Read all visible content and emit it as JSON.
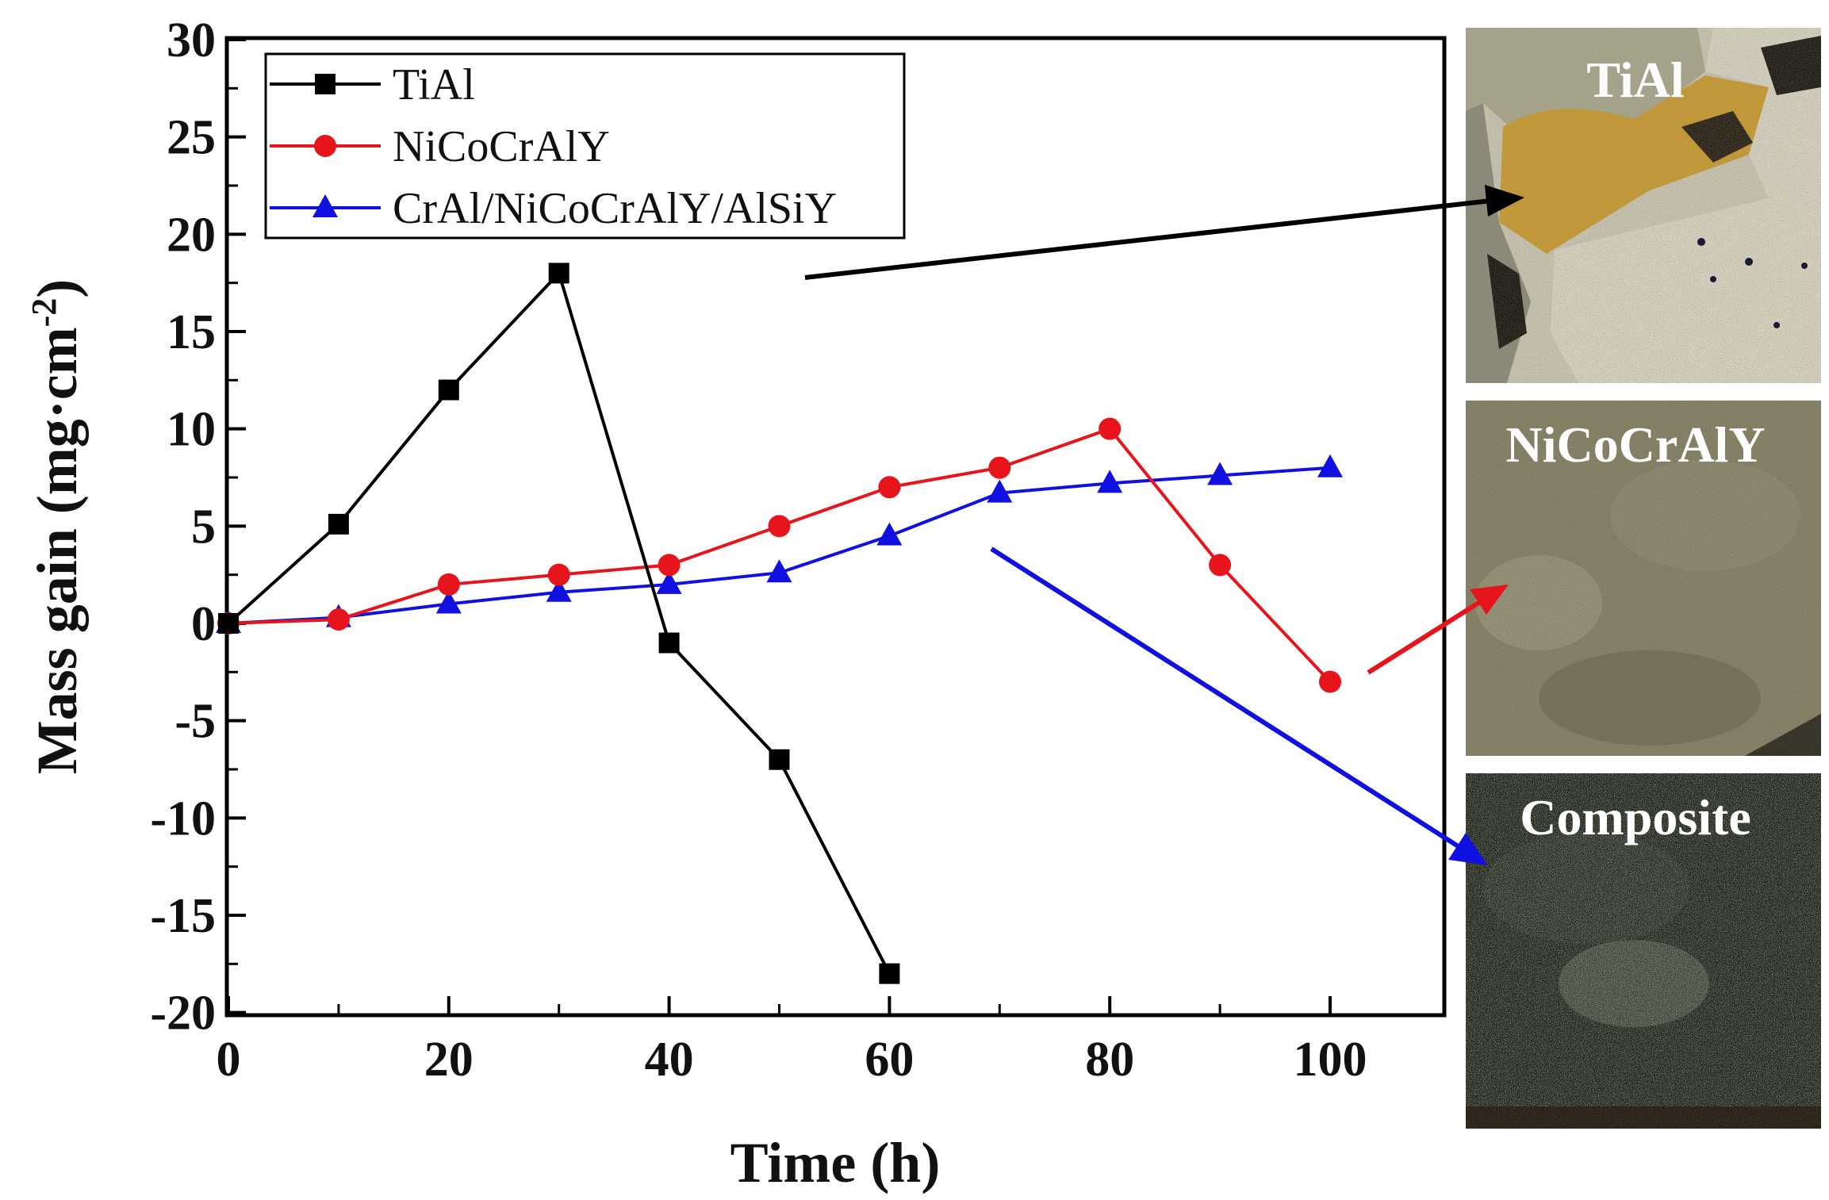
{
  "chart_data": {
    "type": "line",
    "title": "",
    "xlabel": "Time (h)",
    "ylabel": "Mass gain (mg·cm",
    "ylabel_superscript": "-2",
    "ylabel_close": ")",
    "xlim": [
      0,
      110
    ],
    "ylim": [
      -20,
      30
    ],
    "xticks": [
      0,
      20,
      40,
      60,
      80,
      100
    ],
    "xtick_labels": [
      "0",
      "20",
      "40",
      "60",
      "80",
      "100"
    ],
    "yticks": [
      30,
      25,
      20,
      15,
      10,
      5,
      0,
      -5,
      -10,
      -15,
      -20
    ],
    "ytick_labels": [
      "30",
      "25",
      "20",
      "15",
      "10",
      "5",
      "0",
      "-5",
      "-10",
      "-15",
      "-20"
    ],
    "grid": false,
    "legend_position": "top-left",
    "series": [
      {
        "name": "TiAl",
        "color": "#000000",
        "marker": "square",
        "x": [
          0,
          10,
          20,
          30,
          40,
          50,
          60
        ],
        "values": [
          0,
          5.1,
          12,
          18,
          -1,
          -7,
          -18
        ]
      },
      {
        "name": "NiCoCrAlY",
        "color": "#e8141c",
        "marker": "circle",
        "x": [
          0,
          10,
          20,
          30,
          40,
          50,
          60,
          70,
          80,
          90,
          100
        ],
        "values": [
          0,
          0.2,
          2,
          2.5,
          3,
          5,
          7,
          8,
          10,
          3,
          -3
        ]
      },
      {
        "name": "CrAl/NiCoCrAlY/AlSiY",
        "color": "#1010e0",
        "marker": "triangle",
        "x": [
          0,
          10,
          20,
          30,
          40,
          50,
          60,
          70,
          80,
          90,
          100
        ],
        "values": [
          0,
          0.3,
          1,
          1.6,
          2,
          2.6,
          4.5,
          6.7,
          7.2,
          7.6,
          8
        ]
      }
    ]
  },
  "photo_panels": [
    {
      "label": "TiAl",
      "arrow_color": "#000000"
    },
    {
      "label": "NiCoCrAlY",
      "arrow_color": "#e8141c"
    },
    {
      "label": "Composite",
      "arrow_color": "#1010e0"
    }
  ]
}
